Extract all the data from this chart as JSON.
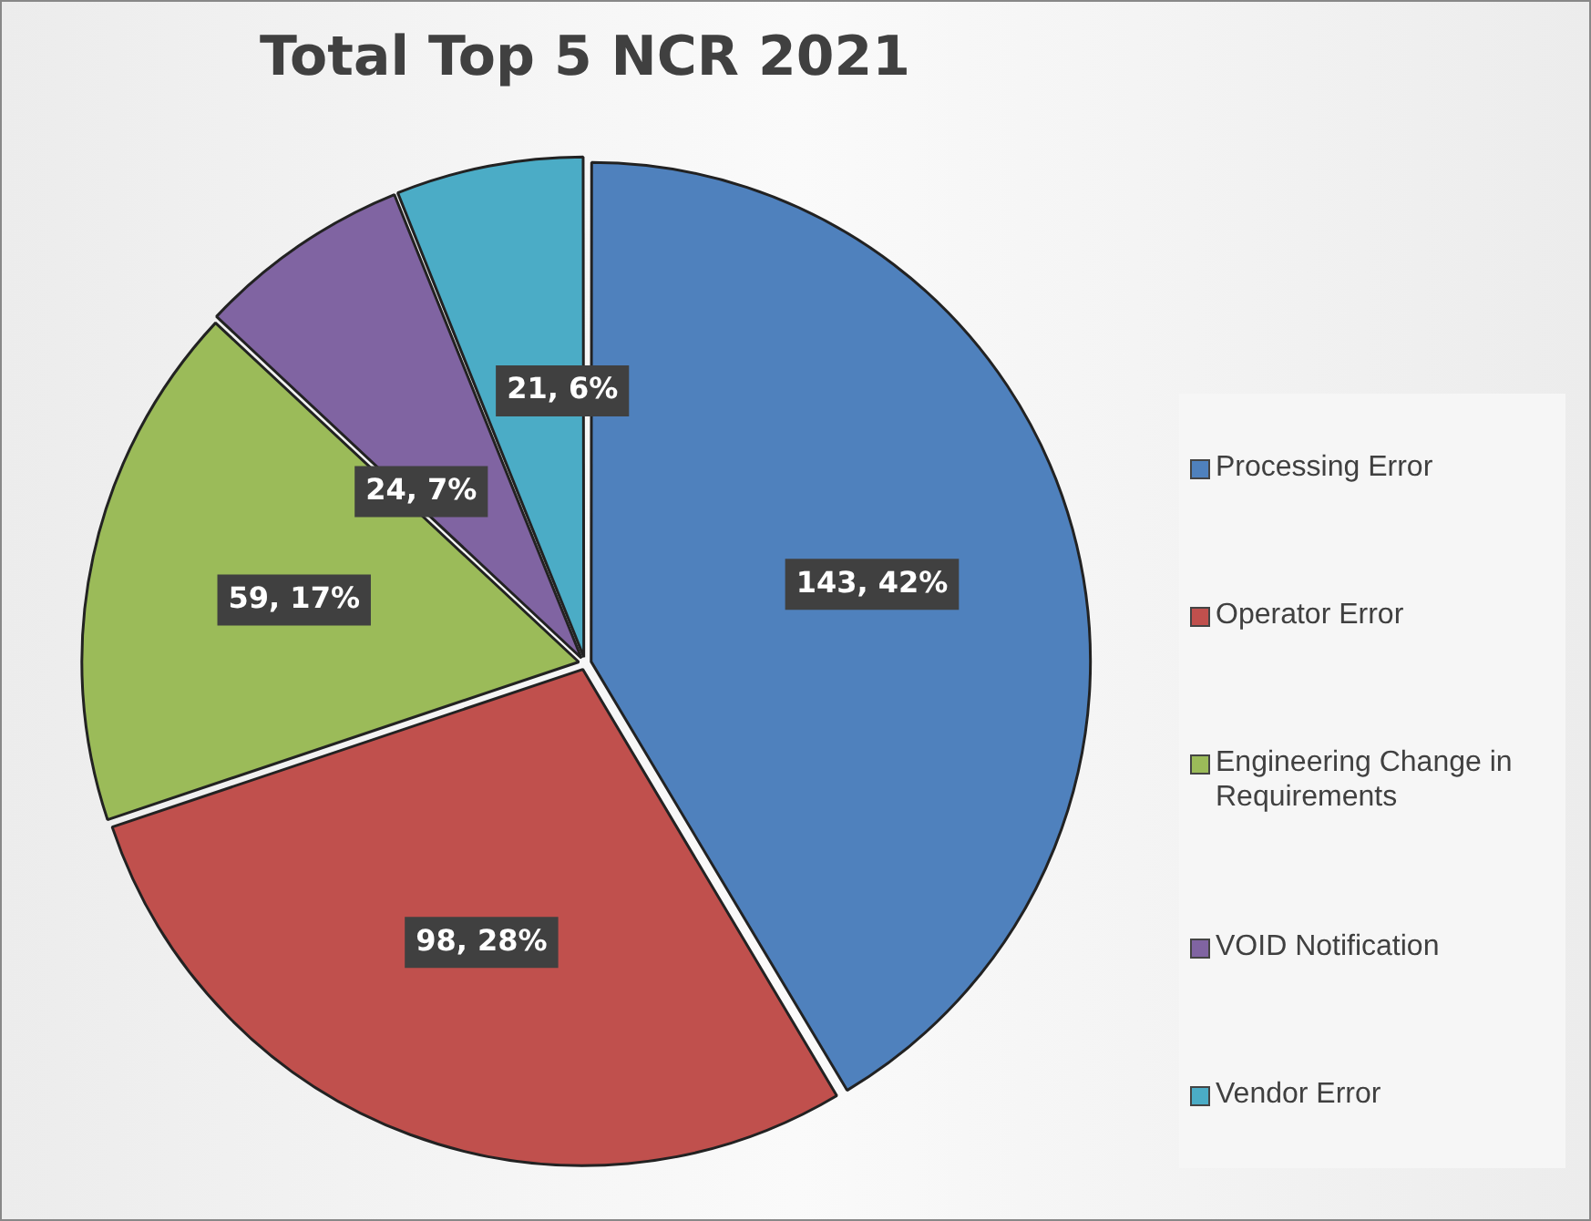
{
  "chart_data": {
    "type": "pie",
    "title": "Total Top 5 NCR 2021",
    "categories": [
      "Processing Error",
      "Operator Error",
      "Engineering Change in Requirements",
      "VOID Notification",
      "Vendor Error"
    ],
    "values": [
      143,
      98,
      59,
      24,
      21
    ],
    "colors": [
      "#4f81bd",
      "#c0504d",
      "#9bbb59",
      "#8064a2",
      "#4bacc6"
    ],
    "value_labels": [
      "143, 42%",
      "98, 28%",
      "59, 17%",
      "24, 7%",
      "21, 6%"
    ],
    "legend": "right"
  }
}
